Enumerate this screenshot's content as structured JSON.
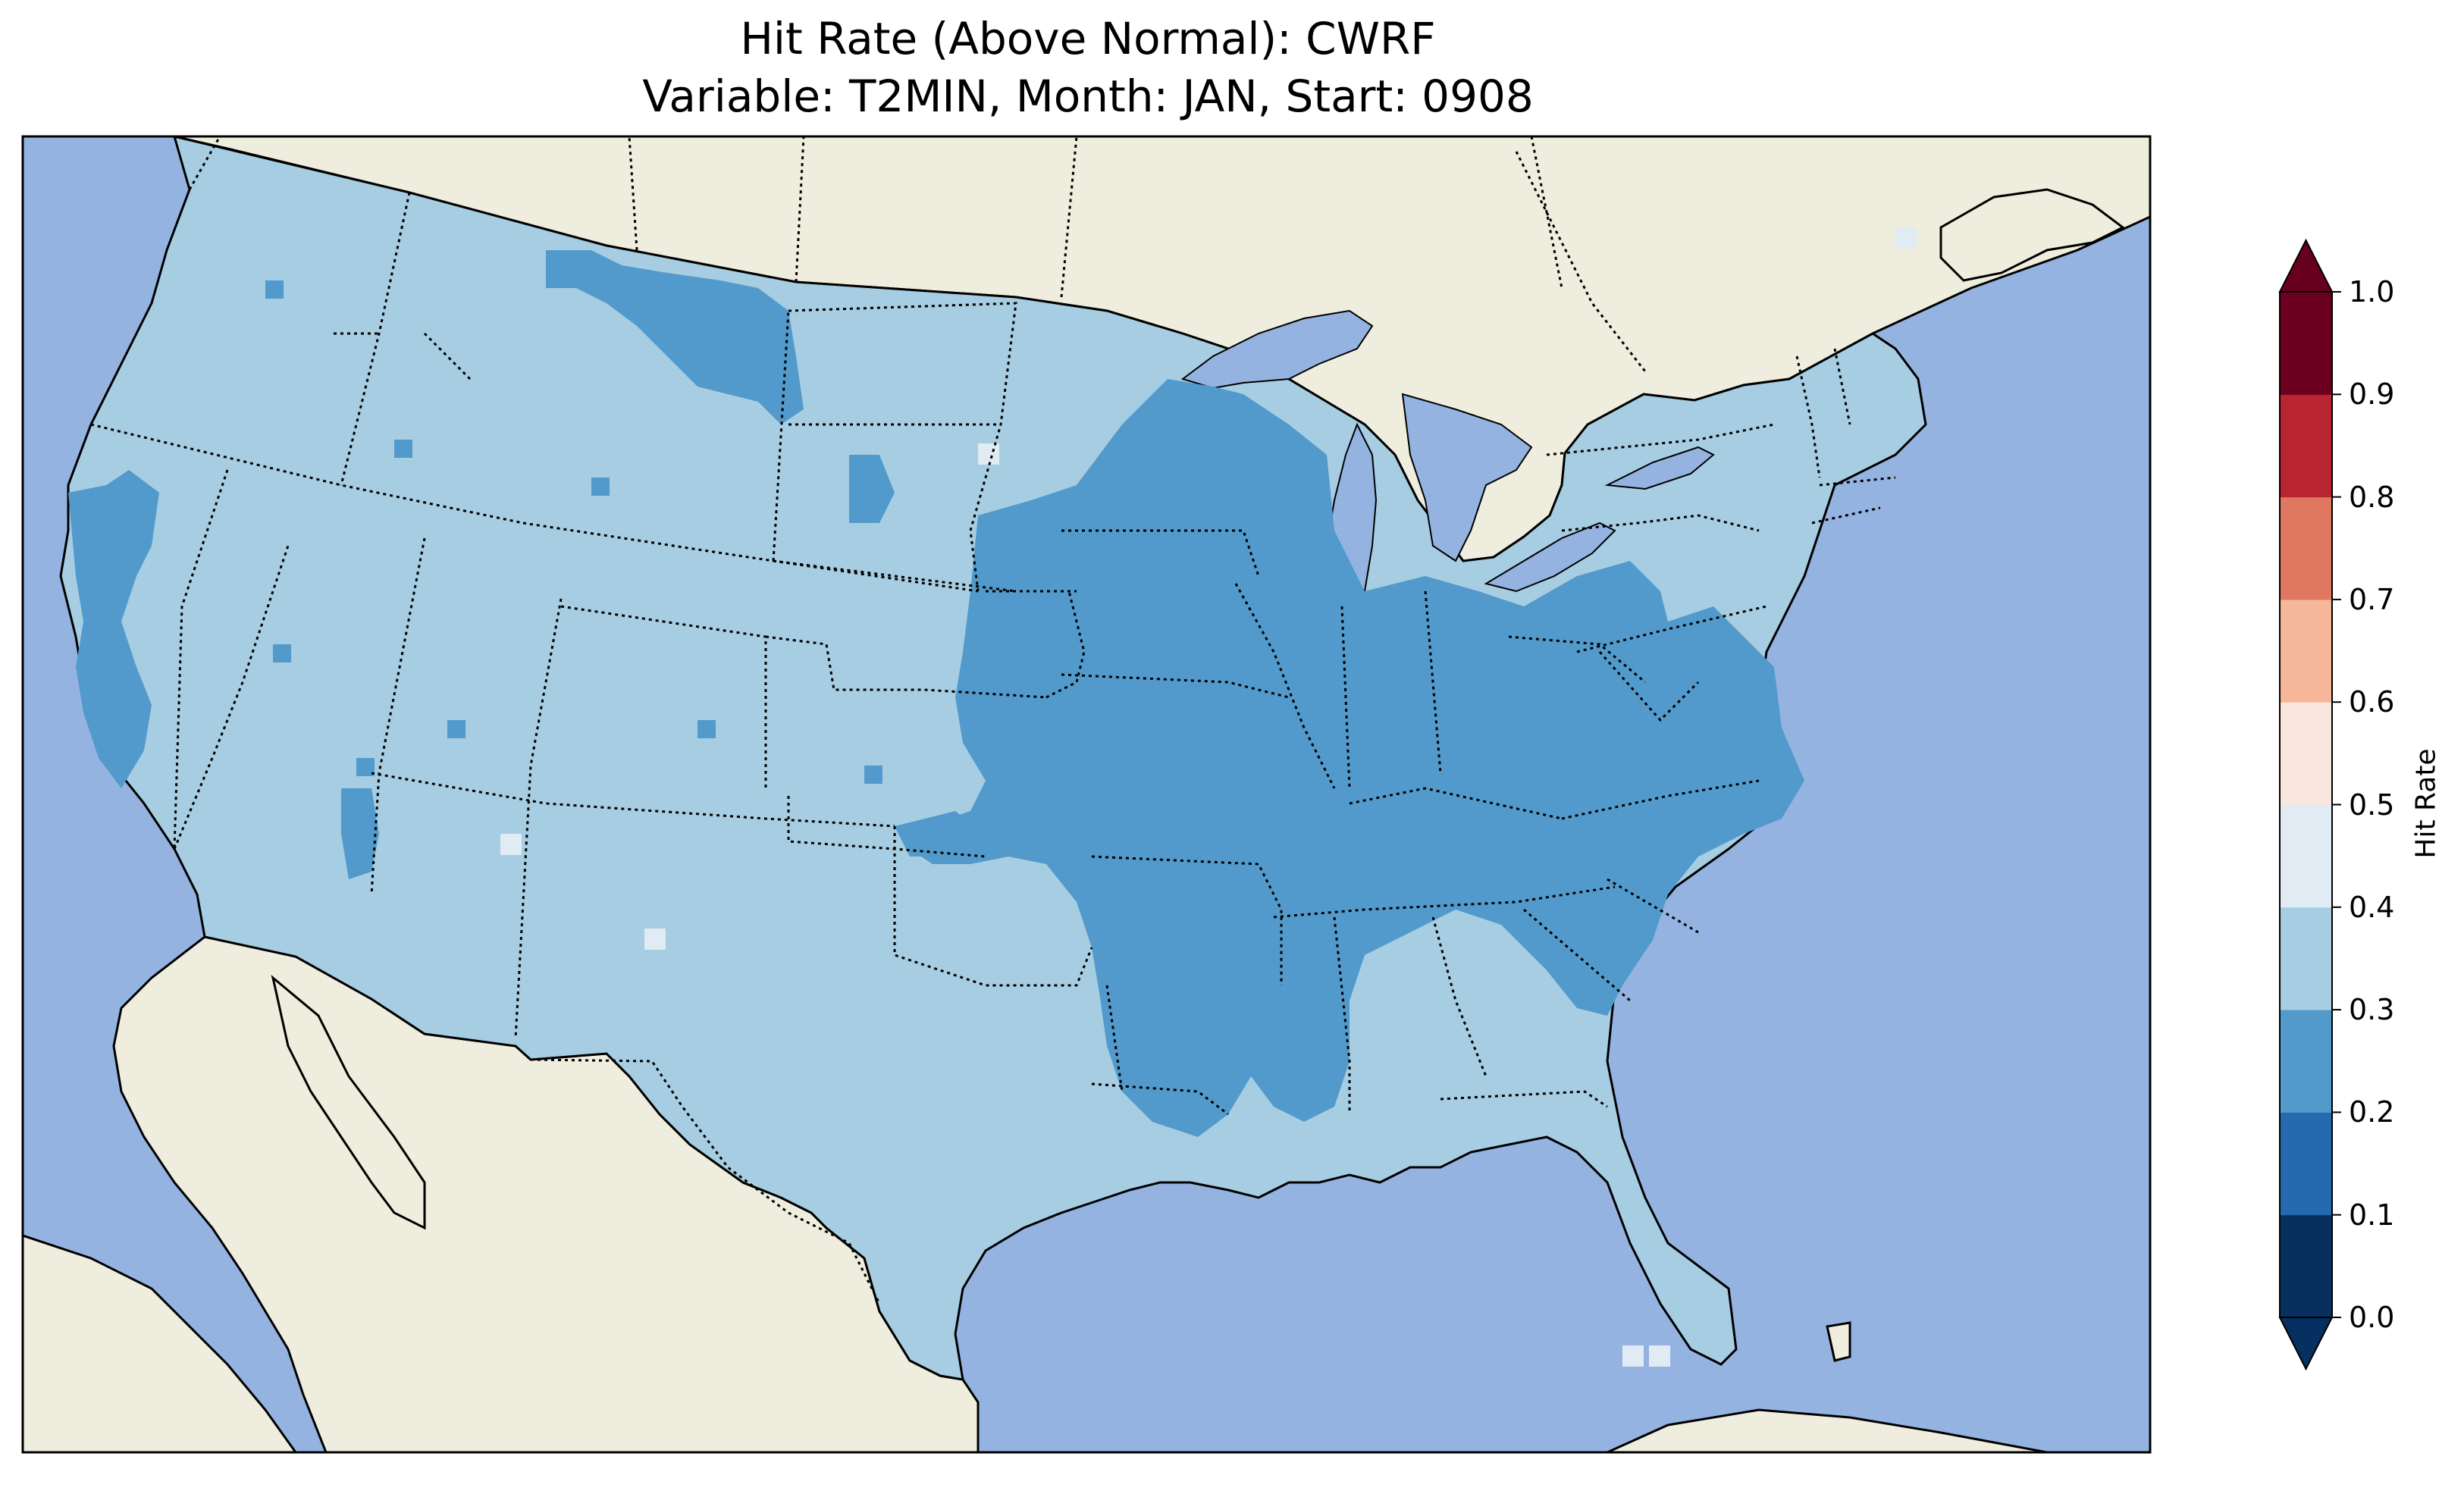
{
  "title": {
    "line1": "Hit Rate (Above Normal): CWRF",
    "line2": "Variable: T2MIN, Month: JAN, Start: 0908"
  },
  "map": {
    "region": "Contiguous United States",
    "ocean_color": "#95b3e0",
    "land_color": "#efedde",
    "variable": "T2MIN",
    "month": "JAN",
    "start": "0908",
    "model": "CWRF",
    "category": "Above Normal",
    "dominant_class": "0.3-0.4",
    "secondary_class": "0.2-0.3 (Midwest, Mississippi Valley, Southeast Atlantic, northern Montana, central California)",
    "isolated_cells": "0.4-0.5 (scattered single cells in South Dakota, Arizona, New Mexico, Maine, south of Florida)"
  },
  "colorbar": {
    "label": "Hit Rate",
    "ticks": [
      "0.0",
      "0.1",
      "0.2",
      "0.3",
      "0.4",
      "0.5",
      "0.6",
      "0.7",
      "0.8",
      "0.9",
      "1.0"
    ],
    "levels": [
      0.0,
      0.1,
      0.2,
      0.3,
      0.4,
      0.5,
      0.6,
      0.7,
      0.8,
      0.9,
      1.0
    ],
    "colors": [
      "#053061",
      "#2166ac",
      "#4393c3",
      "#92c5de",
      "#d1e5f0",
      "#f7f7f7",
      "#fddbc7",
      "#f4a582",
      "#d6604d",
      "#b2182b",
      "#67001f"
    ],
    "display_colors": [
      "#08305e",
      "#2569ae",
      "#529acb",
      "#a6cde2",
      "#e1ebf3",
      "#f8e6df",
      "#f5b69a",
      "#e07760",
      "#b92431",
      "#6b0020"
    ],
    "extend": "both"
  }
}
